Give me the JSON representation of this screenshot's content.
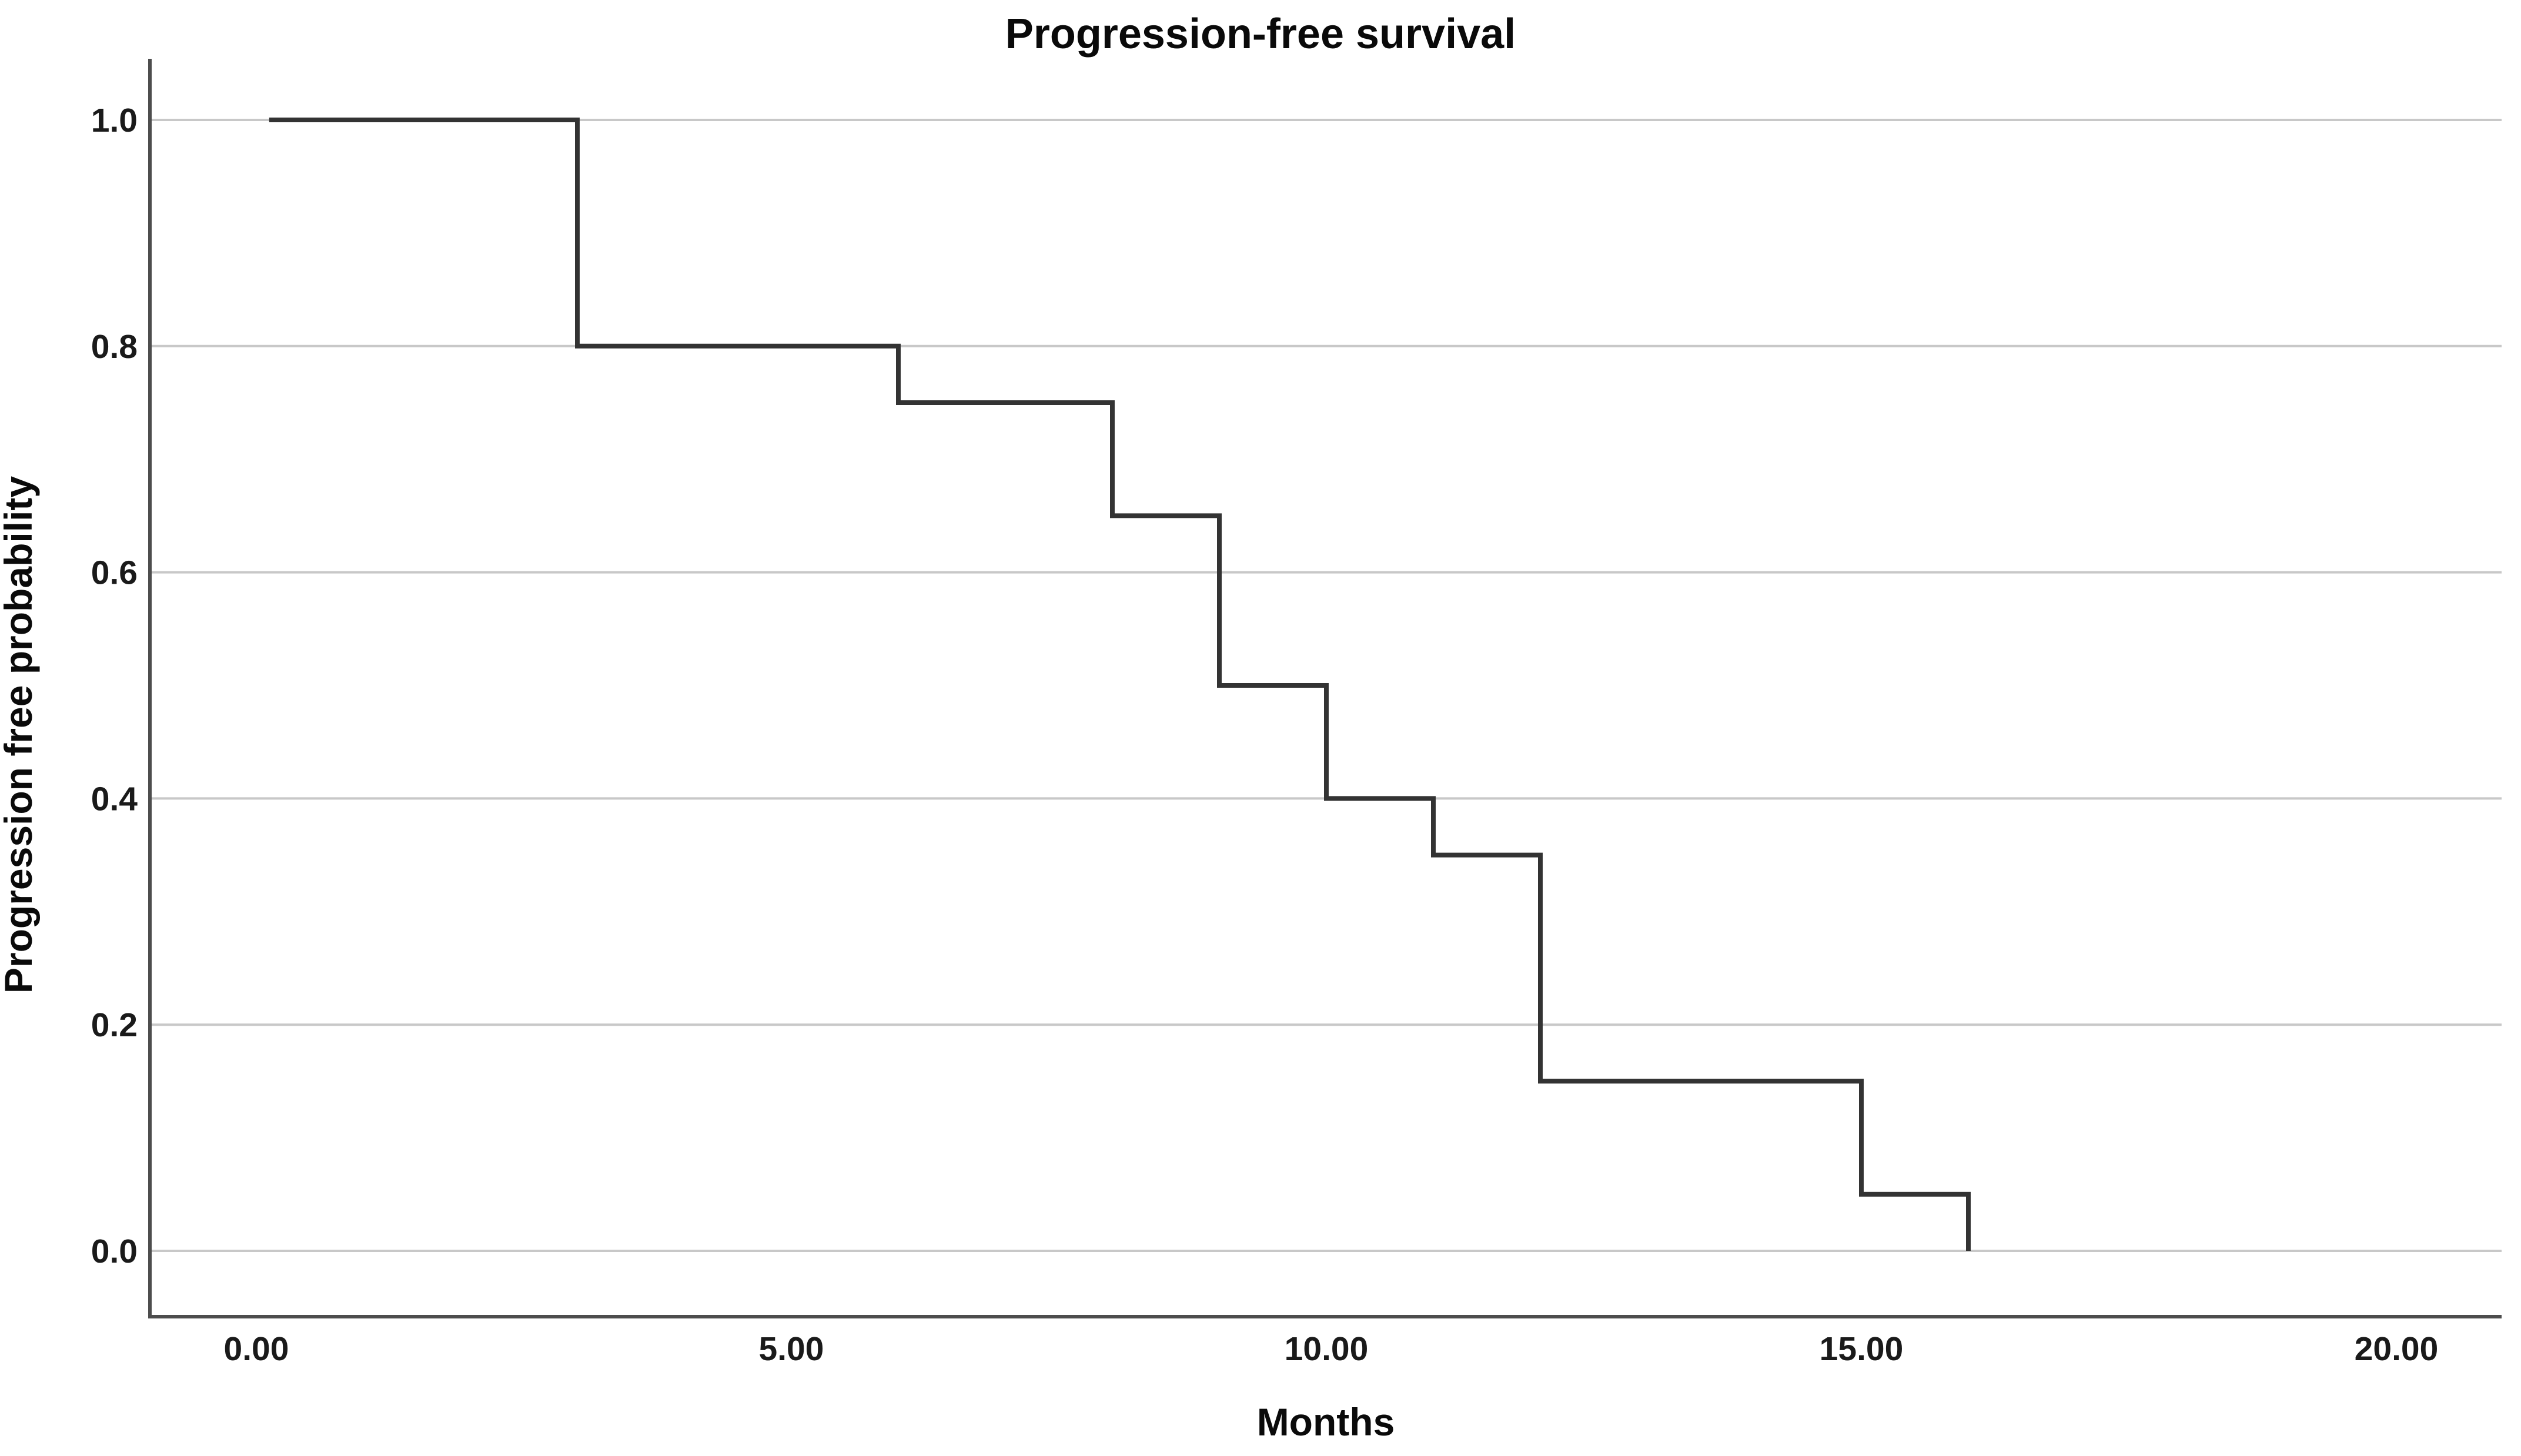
{
  "chart_data": {
    "type": "line",
    "subtype": "kaplan-meier-step",
    "title": "Progression-free survival",
    "xlabel": "Months",
    "ylabel": "Progression free probability",
    "xlim": [
      0,
      20
    ],
    "ylim": [
      0.0,
      1.0
    ],
    "x_ticks": [
      0,
      5,
      10,
      15,
      20
    ],
    "x_tick_labels": [
      "0.00",
      "5.00",
      "10.00",
      "15.00",
      "20.00"
    ],
    "y_ticks": [
      0.0,
      0.2,
      0.4,
      0.6,
      0.8,
      1.0
    ],
    "y_tick_labels": [
      "0.0",
      "0.2",
      "0.4",
      "0.6",
      "0.8",
      "1.0"
    ],
    "grid": "horizontal",
    "legend": null,
    "background_color": "#ffffff",
    "line_color": "#333333",
    "axis_color": "#4d4d4d",
    "gridline_color": "#c8c8c8",
    "curve_start_month": 0.12,
    "steps": [
      {
        "month": 0.12,
        "survival": 1.0
      },
      {
        "month": 3,
        "survival": 0.8
      },
      {
        "month": 6,
        "survival": 0.75
      },
      {
        "month": 8,
        "survival": 0.65
      },
      {
        "month": 9,
        "survival": 0.5
      },
      {
        "month": 10,
        "survival": 0.4
      },
      {
        "month": 11,
        "survival": 0.35
      },
      {
        "month": 12,
        "survival": 0.15
      },
      {
        "month": 15,
        "survival": 0.05
      },
      {
        "month": 16,
        "survival": 0.0
      }
    ]
  }
}
